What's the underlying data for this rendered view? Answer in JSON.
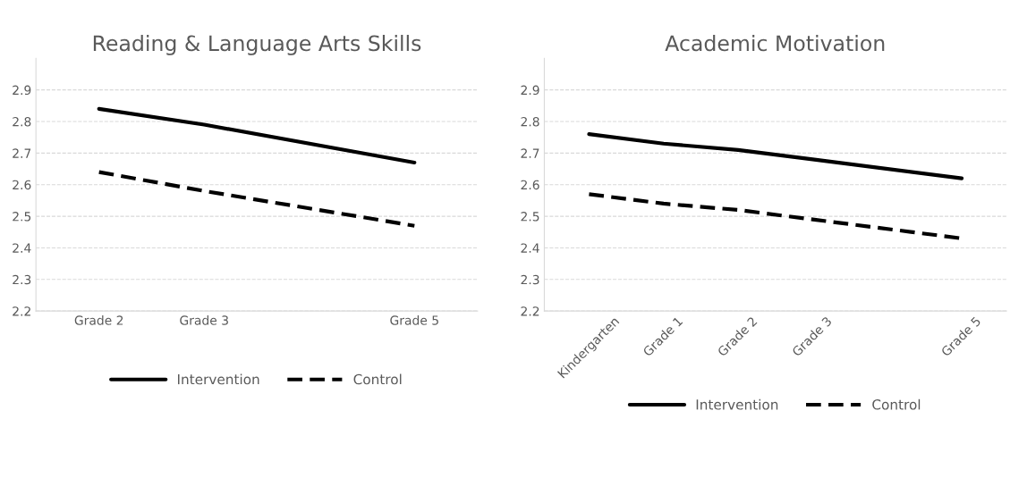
{
  "chart_data": [
    {
      "type": "line",
      "title": "Reading & Language Arts Skills",
      "categories": [
        "Grade 2",
        "Grade 3",
        null,
        "Grade 5"
      ],
      "series": [
        {
          "name": "Intervention",
          "color": "#000000",
          "line_style": "solid",
          "values": [
            2.84,
            2.79,
            null,
            2.67
          ]
        },
        {
          "name": "Control",
          "color": "#000000",
          "line_style": "dashed",
          "values": [
            2.64,
            2.58,
            null,
            2.47
          ]
        }
      ],
      "ylim": [
        2.2,
        3.0
      ],
      "yticks": [
        2.2,
        2.3,
        2.4,
        2.5,
        2.6,
        2.7,
        2.8,
        2.9
      ],
      "grid": "y",
      "legend": "bottom"
    },
    {
      "type": "line",
      "title": "Academic Motivation",
      "categories": [
        "Kindergarten",
        "Grade 1",
        "Grade 2",
        "Grade 3",
        null,
        "Grade 5"
      ],
      "series": [
        {
          "name": "Intervention",
          "color": "#000000",
          "line_style": "solid",
          "values": [
            2.76,
            2.73,
            2.71,
            2.68,
            null,
            2.62
          ]
        },
        {
          "name": "Control",
          "color": "#000000",
          "line_style": "dashed",
          "values": [
            2.57,
            2.54,
            2.52,
            2.49,
            null,
            2.43
          ]
        }
      ],
      "ylim": [
        2.2,
        3.0
      ],
      "yticks": [
        2.2,
        2.3,
        2.4,
        2.5,
        2.6,
        2.7,
        2.8,
        2.9
      ],
      "grid": "y",
      "legend": "bottom"
    }
  ]
}
